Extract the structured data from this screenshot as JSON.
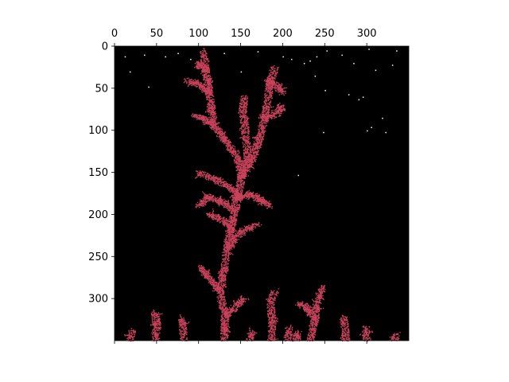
{
  "chart_data": {
    "type": "heatmap",
    "title": "",
    "xlabel": "",
    "ylabel": "",
    "xlim": [
      0,
      350
    ],
    "ylim": [
      350,
      0
    ],
    "x_ticks": [
      0,
      50,
      100,
      150,
      200,
      250,
      300
    ],
    "y_ticks": [
      0,
      50,
      100,
      150,
      200,
      250,
      300
    ],
    "x_tick_labels": [
      "0",
      "50",
      "100",
      "150",
      "200",
      "250",
      "300"
    ],
    "y_tick_labels": [
      "0",
      "50",
      "100",
      "150",
      "200",
      "250",
      "300"
    ],
    "x_axis_position": "top",
    "grid": false,
    "legend": "none",
    "background_color": "#000000",
    "particle_color": "#c8435a",
    "particle_description": "diffusion-limited aggregation cluster growing upward from the bottom edge",
    "branches": [
      [
        [
          130,
          350
        ],
        [
          131,
          320
        ],
        [
          125,
          290
        ],
        [
          130,
          265
        ],
        [
          133,
          240
        ],
        [
          138,
          215
        ],
        [
          143,
          195
        ],
        [
          147,
          175
        ],
        [
          150,
          155
        ]
      ],
      [
        [
          150,
          155
        ],
        [
          145,
          130
        ],
        [
          130,
          110
        ],
        [
          118,
          95
        ],
        [
          115,
          75
        ],
        [
          112,
          55
        ],
        [
          108,
          30
        ],
        [
          105,
          5
        ]
      ],
      [
        [
          118,
          95
        ],
        [
          105,
          85
        ],
        [
          95,
          82
        ]
      ],
      [
        [
          112,
          55
        ],
        [
          100,
          45
        ],
        [
          85,
          40
        ]
      ],
      [
        [
          108,
          30
        ],
        [
          98,
          20
        ]
      ],
      [
        [
          150,
          155
        ],
        [
          158,
          130
        ],
        [
          155,
          100
        ],
        [
          152,
          75
        ],
        [
          154,
          60
        ]
      ],
      [
        [
          150,
          155
        ],
        [
          163,
          135
        ],
        [
          172,
          110
        ],
        [
          178,
          85
        ],
        [
          182,
          60
        ],
        [
          185,
          40
        ],
        [
          190,
          25
        ]
      ],
      [
        [
          178,
          85
        ],
        [
          193,
          80
        ],
        [
          197,
          70
        ]
      ],
      [
        [
          185,
          40
        ],
        [
          195,
          50
        ],
        [
          200,
          55
        ]
      ],
      [
        [
          143,
          195
        ],
        [
          128,
          185
        ],
        [
          110,
          178
        ],
        [
          100,
          190
        ]
      ],
      [
        [
          138,
          215
        ],
        [
          125,
          205
        ],
        [
          112,
          200
        ]
      ],
      [
        [
          147,
          175
        ],
        [
          125,
          160
        ],
        [
          100,
          150
        ]
      ],
      [
        [
          140,
          180
        ],
        [
          162,
          175
        ],
        [
          178,
          185
        ],
        [
          185,
          190
        ]
      ],
      [
        [
          133,
          240
        ],
        [
          145,
          225
        ],
        [
          158,
          215
        ],
        [
          170,
          212
        ]
      ],
      [
        [
          125,
          290
        ],
        [
          112,
          275
        ],
        [
          102,
          262
        ]
      ],
      [
        [
          131,
          320
        ],
        [
          142,
          310
        ],
        [
          152,
          300
        ]
      ],
      [
        [
          186,
          350
        ],
        [
          187,
          325
        ],
        [
          185,
          305
        ],
        [
          190,
          290
        ]
      ],
      [
        [
          232,
          350
        ],
        [
          238,
          325
        ],
        [
          240,
          303
        ],
        [
          247,
          285
        ]
      ],
      [
        [
          238,
          325
        ],
        [
          228,
          310
        ],
        [
          220,
          305
        ]
      ],
      [
        [
          48,
          350
        ],
        [
          50,
          330
        ],
        [
          47,
          315
        ]
      ],
      [
        [
          82,
          350
        ],
        [
          80,
          325
        ]
      ],
      [
        [
          275,
          350
        ],
        [
          272,
          320
        ]
      ],
      [
        [
          300,
          350
        ],
        [
          298,
          335
        ]
      ],
      [
        [
          18,
          350
        ],
        [
          20,
          338
        ]
      ],
      [
        [
          160,
          350
        ],
        [
          162,
          340
        ]
      ],
      [
        [
          205,
          350
        ],
        [
          207,
          335
        ]
      ],
      [
        [
          215,
          350
        ],
        [
          218,
          340
        ]
      ],
      [
        [
          330,
          350
        ],
        [
          335,
          342
        ]
      ]
    ],
    "free_particles": [
      [
        12,
        12
      ],
      [
        35,
        10
      ],
      [
        40,
        48
      ],
      [
        60,
        12
      ],
      [
        75,
        8
      ],
      [
        90,
        15
      ],
      [
        130,
        8
      ],
      [
        150,
        30
      ],
      [
        170,
        6
      ],
      [
        200,
        12
      ],
      [
        210,
        15
      ],
      [
        225,
        20
      ],
      [
        232,
        17
      ],
      [
        240,
        12
      ],
      [
        238,
        35
      ],
      [
        250,
        52
      ],
      [
        252,
        5
      ],
      [
        270,
        10
      ],
      [
        278,
        57
      ],
      [
        284,
        20
      ],
      [
        290,
        63
      ],
      [
        295,
        60
      ],
      [
        302,
        3
      ],
      [
        305,
        96
      ],
      [
        300,
        100
      ],
      [
        310,
        28
      ],
      [
        318,
        85
      ],
      [
        322,
        102
      ],
      [
        330,
        22
      ],
      [
        335,
        5
      ],
      [
        350,
        8
      ],
      [
        218,
        153
      ],
      [
        248,
        102
      ],
      [
        18,
        30
      ]
    ]
  }
}
